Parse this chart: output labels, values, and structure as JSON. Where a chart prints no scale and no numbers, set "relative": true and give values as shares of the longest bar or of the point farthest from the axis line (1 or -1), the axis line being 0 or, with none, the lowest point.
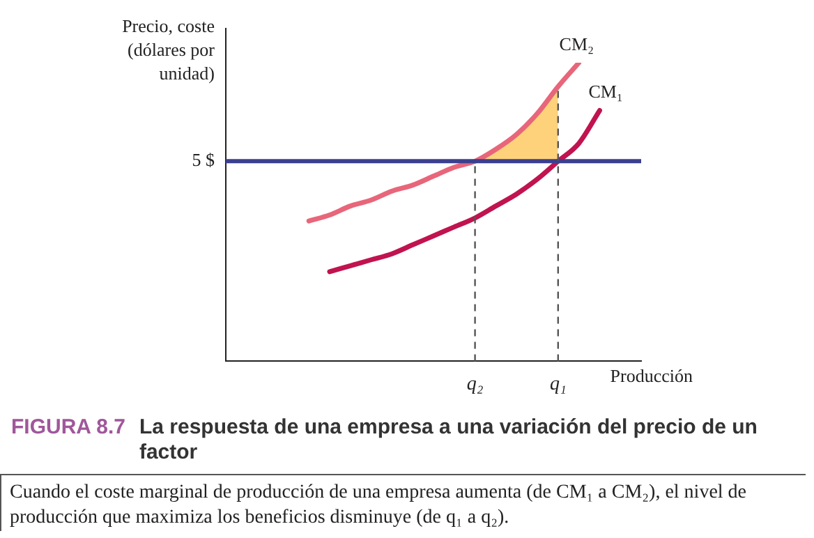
{
  "chart_data": {
    "type": "line",
    "title": "FIGURA 8.7 La respuesta de una empresa a una variación del precio de un factor",
    "xlabel": "Producción",
    "ylabel": "Precio, coste (dólares por unidad)",
    "relative": true,
    "categories": [
      null,
      null,
      null,
      null,
      null,
      null,
      null,
      null,
      null,
      null,
      null,
      null,
      "q₂",
      null,
      null,
      null,
      "q₁",
      null,
      null,
      null,
      null
    ],
    "series": [
      {
        "name": "CM₂",
        "color": "#e8667a",
        "values": [
          null,
          null,
          null,
          null,
          0.47,
          0.49,
          0.52,
          0.54,
          0.57,
          0.59,
          0.62,
          0.65,
          0.67,
          0.71,
          0.76,
          0.83,
          0.92,
          1.0,
          null,
          null,
          null
        ]
      },
      {
        "name": "CM₁",
        "color": "#c0134f",
        "values": [
          null,
          null,
          null,
          null,
          null,
          0.3,
          0.32,
          0.34,
          0.36,
          0.39,
          0.42,
          0.45,
          0.48,
          0.52,
          0.56,
          0.61,
          0.67,
          0.73,
          0.84,
          null,
          null
        ]
      },
      {
        "type": "area",
        "color": "#fdd27a",
        "values": [
          null,
          null,
          null,
          null,
          null,
          null,
          null,
          null,
          null,
          null,
          null,
          null,
          0.67,
          0.71,
          0.76,
          0.83,
          0.92,
          null,
          null,
          null,
          null
        ]
      }
    ],
    "ref_lines": [
      {
        "axis": "y",
        "value": 0.67,
        "color": "#3b3f8f"
      },
      {
        "axis": "x",
        "value": "q₂",
        "color": "#555555",
        "line_style": "dashed"
      },
      {
        "axis": "x",
        "value": "q₁",
        "color": "#555555",
        "line_style": "dashed"
      }
    ],
    "annotations": [
      "5 $",
      "Cuando el coste marginal de producción de una empresa aumenta (de CM₁ a CM₂), el nivel de producción que maximiza los beneficios disminuye (de q₁ a q₂)."
    ],
    "legend": false,
    "grid": false,
    "marker": "none",
    "line_style": "solid"
  }
}
